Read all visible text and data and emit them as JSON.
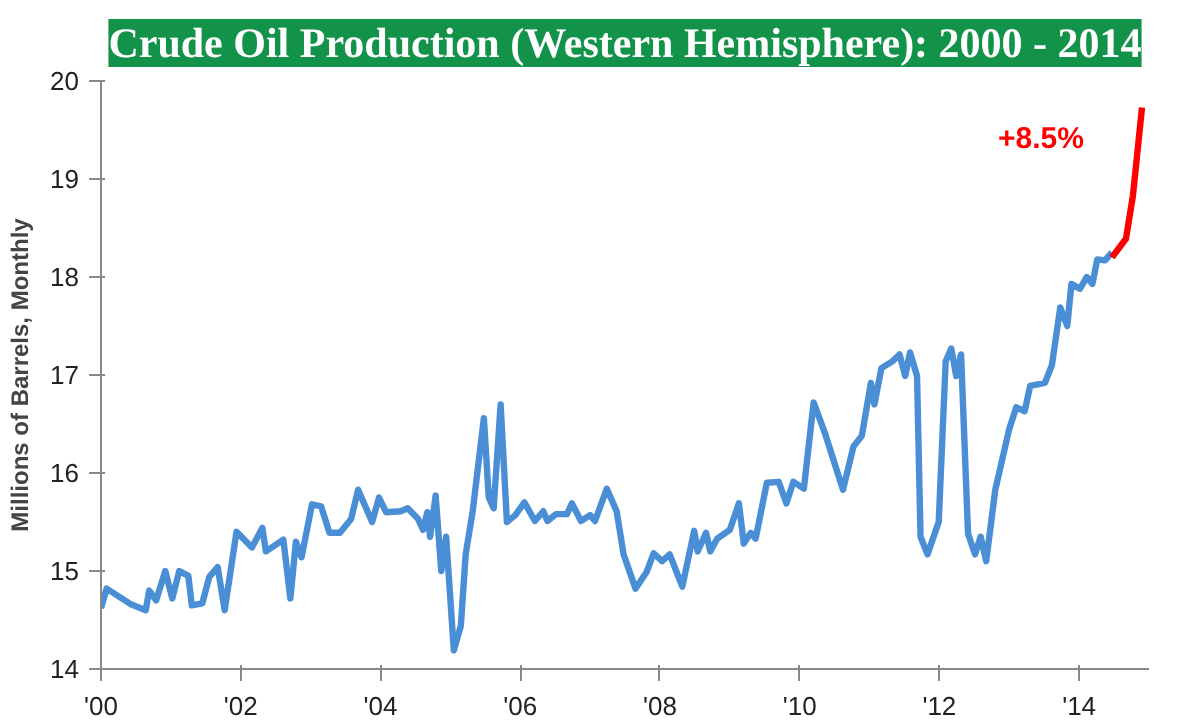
{
  "chart_data": {
    "type": "line",
    "title": "Crude Oil Production (Western Hemisphere): 2000 - 2014",
    "ylabel": "Millions of Barrels, Monthly",
    "series": [
      {
        "color": "#4a8fd6",
        "x": [
          2000.0,
          2000.08,
          2000.43,
          2000.64,
          2000.69,
          2000.79,
          2000.92,
          2001.02,
          2001.12,
          2001.25,
          2001.3,
          2001.45,
          2001.55,
          2001.67,
          2001.77,
          2001.94,
          2002.16,
          2002.31,
          2002.36,
          2002.61,
          2002.71,
          2002.79,
          2002.87,
          2003.02,
          2003.15,
          2003.27,
          2003.42,
          2003.58,
          2003.68,
          2003.88,
          2003.98,
          2004.08,
          2004.29,
          2004.39,
          2004.54,
          2004.61,
          2004.67,
          2004.71,
          2004.79,
          2004.87,
          2004.94,
          2005.05,
          2005.15,
          2005.22,
          2005.32,
          2005.48,
          2005.55,
          2005.62,
          2005.72,
          2005.81,
          2005.93,
          2006.06,
          2006.21,
          2006.33,
          2006.39,
          2006.51,
          2006.67,
          2006.74,
          2006.87,
          2007.0,
          2007.07,
          2007.24,
          2007.38,
          2007.48,
          2007.65,
          2007.81,
          2007.91,
          2008.03,
          2008.14,
          2008.32,
          2008.49,
          2008.54,
          2008.66,
          2008.72,
          2008.82,
          2009.0,
          2009.13,
          2009.2,
          2009.3,
          2009.37,
          2009.53,
          2009.7,
          2009.81,
          2009.91,
          2010.06,
          2010.2,
          2010.36,
          2010.62,
          2010.77,
          2010.89,
          2011.02,
          2011.07,
          2011.17,
          2011.33,
          2011.43,
          2011.51,
          2011.58,
          2011.68,
          2011.73,
          2011.83,
          2011.99,
          2012.09,
          2012.17,
          2012.24,
          2012.31,
          2012.41,
          2012.51,
          2012.59,
          2012.67,
          2012.8,
          2013.0,
          2013.1,
          2013.22,
          2013.3,
          2013.51,
          2013.61,
          2013.73,
          2013.83,
          2013.89,
          2014.01,
          2014.11,
          2014.19,
          2014.26,
          2014.37,
          2014.47
        ],
        "values": [
          14.62,
          14.82,
          14.66,
          14.6,
          14.8,
          14.7,
          15.0,
          14.72,
          15.0,
          14.95,
          14.65,
          14.67,
          14.94,
          15.04,
          14.6,
          15.4,
          15.24,
          15.44,
          15.2,
          15.32,
          14.72,
          15.3,
          15.14,
          15.68,
          15.66,
          15.39,
          15.39,
          15.53,
          15.83,
          15.5,
          15.75,
          15.6,
          15.61,
          15.64,
          15.53,
          15.42,
          15.6,
          15.35,
          15.77,
          15.0,
          15.35,
          14.19,
          14.44,
          15.17,
          15.61,
          16.56,
          15.75,
          15.64,
          16.7,
          15.5,
          15.57,
          15.7,
          15.51,
          15.61,
          15.51,
          15.58,
          15.58,
          15.69,
          15.51,
          15.57,
          15.51,
          15.84,
          15.61,
          15.17,
          14.82,
          14.99,
          15.18,
          15.1,
          15.17,
          14.84,
          15.41,
          15.2,
          15.39,
          15.2,
          15.33,
          15.42,
          15.69,
          15.28,
          15.39,
          15.33,
          15.9,
          15.91,
          15.69,
          15.91,
          15.84,
          16.72,
          16.41,
          15.83,
          16.27,
          16.38,
          16.92,
          16.7,
          17.07,
          17.14,
          17.21,
          16.99,
          17.23,
          16.99,
          15.35,
          15.17,
          15.5,
          17.14,
          17.27,
          16.99,
          17.21,
          15.38,
          15.17,
          15.35,
          15.1,
          15.83,
          16.45,
          16.67,
          16.63,
          16.89,
          16.92,
          17.1,
          17.69,
          17.5,
          17.93,
          17.88,
          18.0,
          17.93,
          18.18,
          18.17,
          18.25
        ]
      },
      {
        "color": "#ff0000",
        "x": [
          2014.47,
          2014.67,
          2014.77,
          2014.9
        ],
        "values": [
          18.2,
          18.39,
          18.83,
          19.73
        ]
      }
    ],
    "annotations": [
      "+8.5%"
    ],
    "xlim": [
      2000,
      2015
    ],
    "ylim": [
      14,
      20
    ],
    "xticks": [
      {
        "value": 2000,
        "label": "'00"
      },
      {
        "value": 2002,
        "label": "'02"
      },
      {
        "value": 2004,
        "label": "'04"
      },
      {
        "value": 2006,
        "label": "'06"
      },
      {
        "value": 2008,
        "label": "'08"
      },
      {
        "value": 2010,
        "label": "'10"
      },
      {
        "value": 2012,
        "label": "'12"
      },
      {
        "value": 2014,
        "label": "'14"
      }
    ],
    "yticks": [
      14,
      15,
      16,
      17,
      18,
      19,
      20
    ],
    "grid": false,
    "marker": "none",
    "line_style": "solid"
  }
}
